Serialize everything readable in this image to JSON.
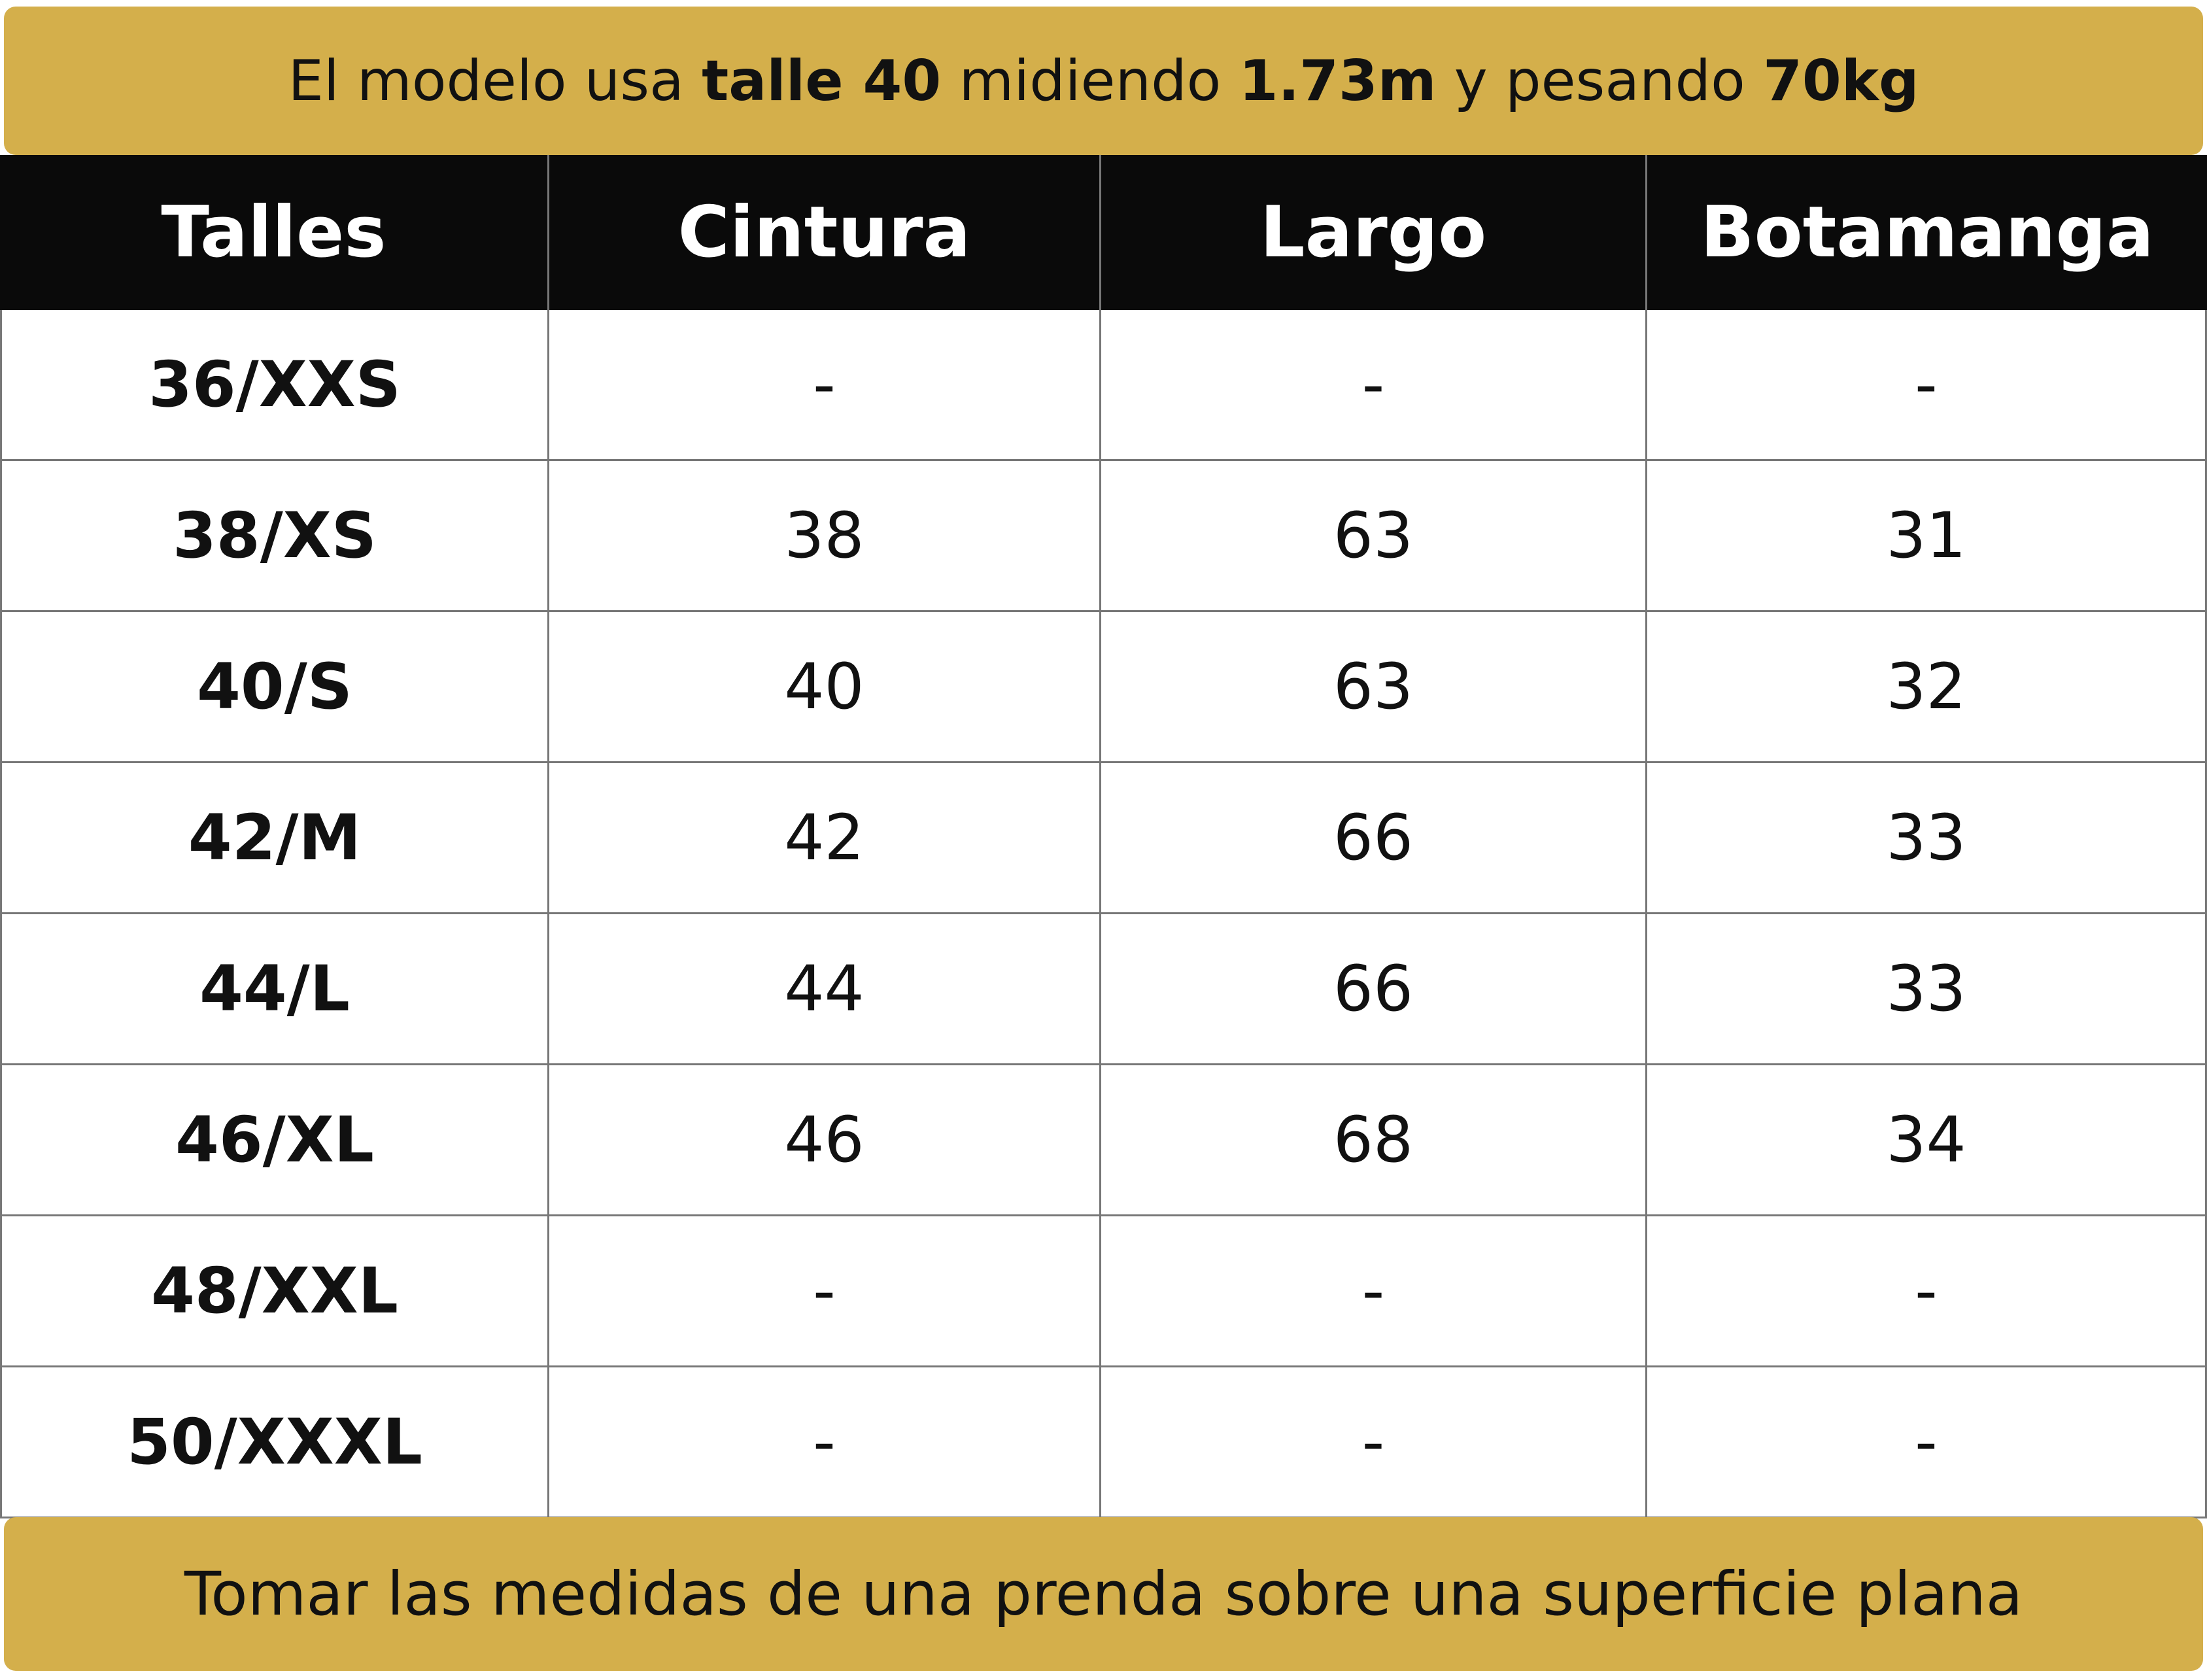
{
  "top_note": {
    "segments": [
      {
        "text": "El modelo usa ",
        "bold": false
      },
      {
        "text": "talle 40",
        "bold": true
      },
      {
        "text": " midiendo ",
        "bold": false
      },
      {
        "text": "1.73m",
        "bold": true
      },
      {
        "text": " y pesando ",
        "bold": false
      },
      {
        "text": "70kg",
        "bold": true
      }
    ]
  },
  "table": {
    "columns": [
      "Talles",
      "Cintura",
      "Largo",
      "Botamanga"
    ],
    "rows": [
      [
        "36/XXS",
        "-",
        "-",
        "-"
      ],
      [
        "38/XS",
        38,
        63,
        31
      ],
      [
        "40/S",
        40,
        63,
        32
      ],
      [
        "42/M",
        42,
        66,
        33
      ],
      [
        "44/L",
        44,
        66,
        33
      ],
      [
        "46/XL",
        46,
        68,
        34
      ],
      [
        "48/XXL",
        "-",
        "-",
        "-"
      ],
      [
        "50/XXXL",
        "-",
        "-",
        "-"
      ]
    ]
  },
  "bottom_note": "Tomar las medidas de una prenda sobre una superficie plana"
}
